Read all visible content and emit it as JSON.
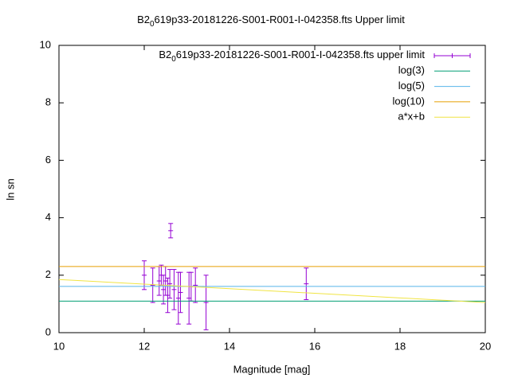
{
  "chart_data": {
    "type": "errorbar",
    "title": [
      "B2",
      "0",
      "619p33-20181226-S001-R001-I-042358.fts Upper limit"
    ],
    "xlabel": "Magnitude [mag]",
    "ylabel": "ln sn",
    "xlim": [
      10,
      20
    ],
    "ylim": [
      0,
      10
    ],
    "xticks": [
      10,
      12,
      14,
      16,
      18,
      20
    ],
    "yticks": [
      0,
      2,
      4,
      6,
      8,
      10
    ],
    "legend": "top-right",
    "series": [
      {
        "name": [
          "B2",
          "0",
          "619p33-20181226-S001-R001-I-042358.fts upper limit"
        ],
        "type": "errorbar",
        "color": "#9400d3",
        "x": [
          12.0,
          12.2,
          12.35,
          12.4,
          12.45,
          12.5,
          12.55,
          12.6,
          12.62,
          12.7,
          12.8,
          12.85,
          13.05,
          13.1,
          13.2,
          13.45,
          15.8
        ],
        "values": [
          2.0,
          1.65,
          1.8,
          2.0,
          1.5,
          1.8,
          1.3,
          1.7,
          3.55,
          1.5,
          1.2,
          1.4,
          1.2,
          1.6,
          1.65,
          1.05,
          1.7
        ],
        "errors": [
          0.5,
          0.6,
          0.5,
          0.35,
          0.5,
          0.5,
          0.6,
          0.5,
          0.25,
          0.7,
          0.9,
          0.7,
          0.9,
          0.5,
          0.6,
          0.95,
          0.55
        ]
      },
      {
        "name": "log(3)",
        "type": "line",
        "color": "#009e73",
        "x": [
          10,
          20
        ],
        "values": [
          1.0986,
          1.0986
        ]
      },
      {
        "name": "log(5)",
        "type": "line",
        "color": "#56b4e9",
        "x": [
          10,
          20
        ],
        "values": [
          1.6094,
          1.6094
        ]
      },
      {
        "name": "log(10)",
        "type": "line",
        "color": "#e69f00",
        "x": [
          10,
          20
        ],
        "values": [
          2.3026,
          2.3026
        ]
      },
      {
        "name": "a*x+b",
        "type": "line",
        "color": "#f0e442",
        "x": [
          10,
          20
        ],
        "values": [
          1.85,
          1.05
        ]
      }
    ]
  }
}
